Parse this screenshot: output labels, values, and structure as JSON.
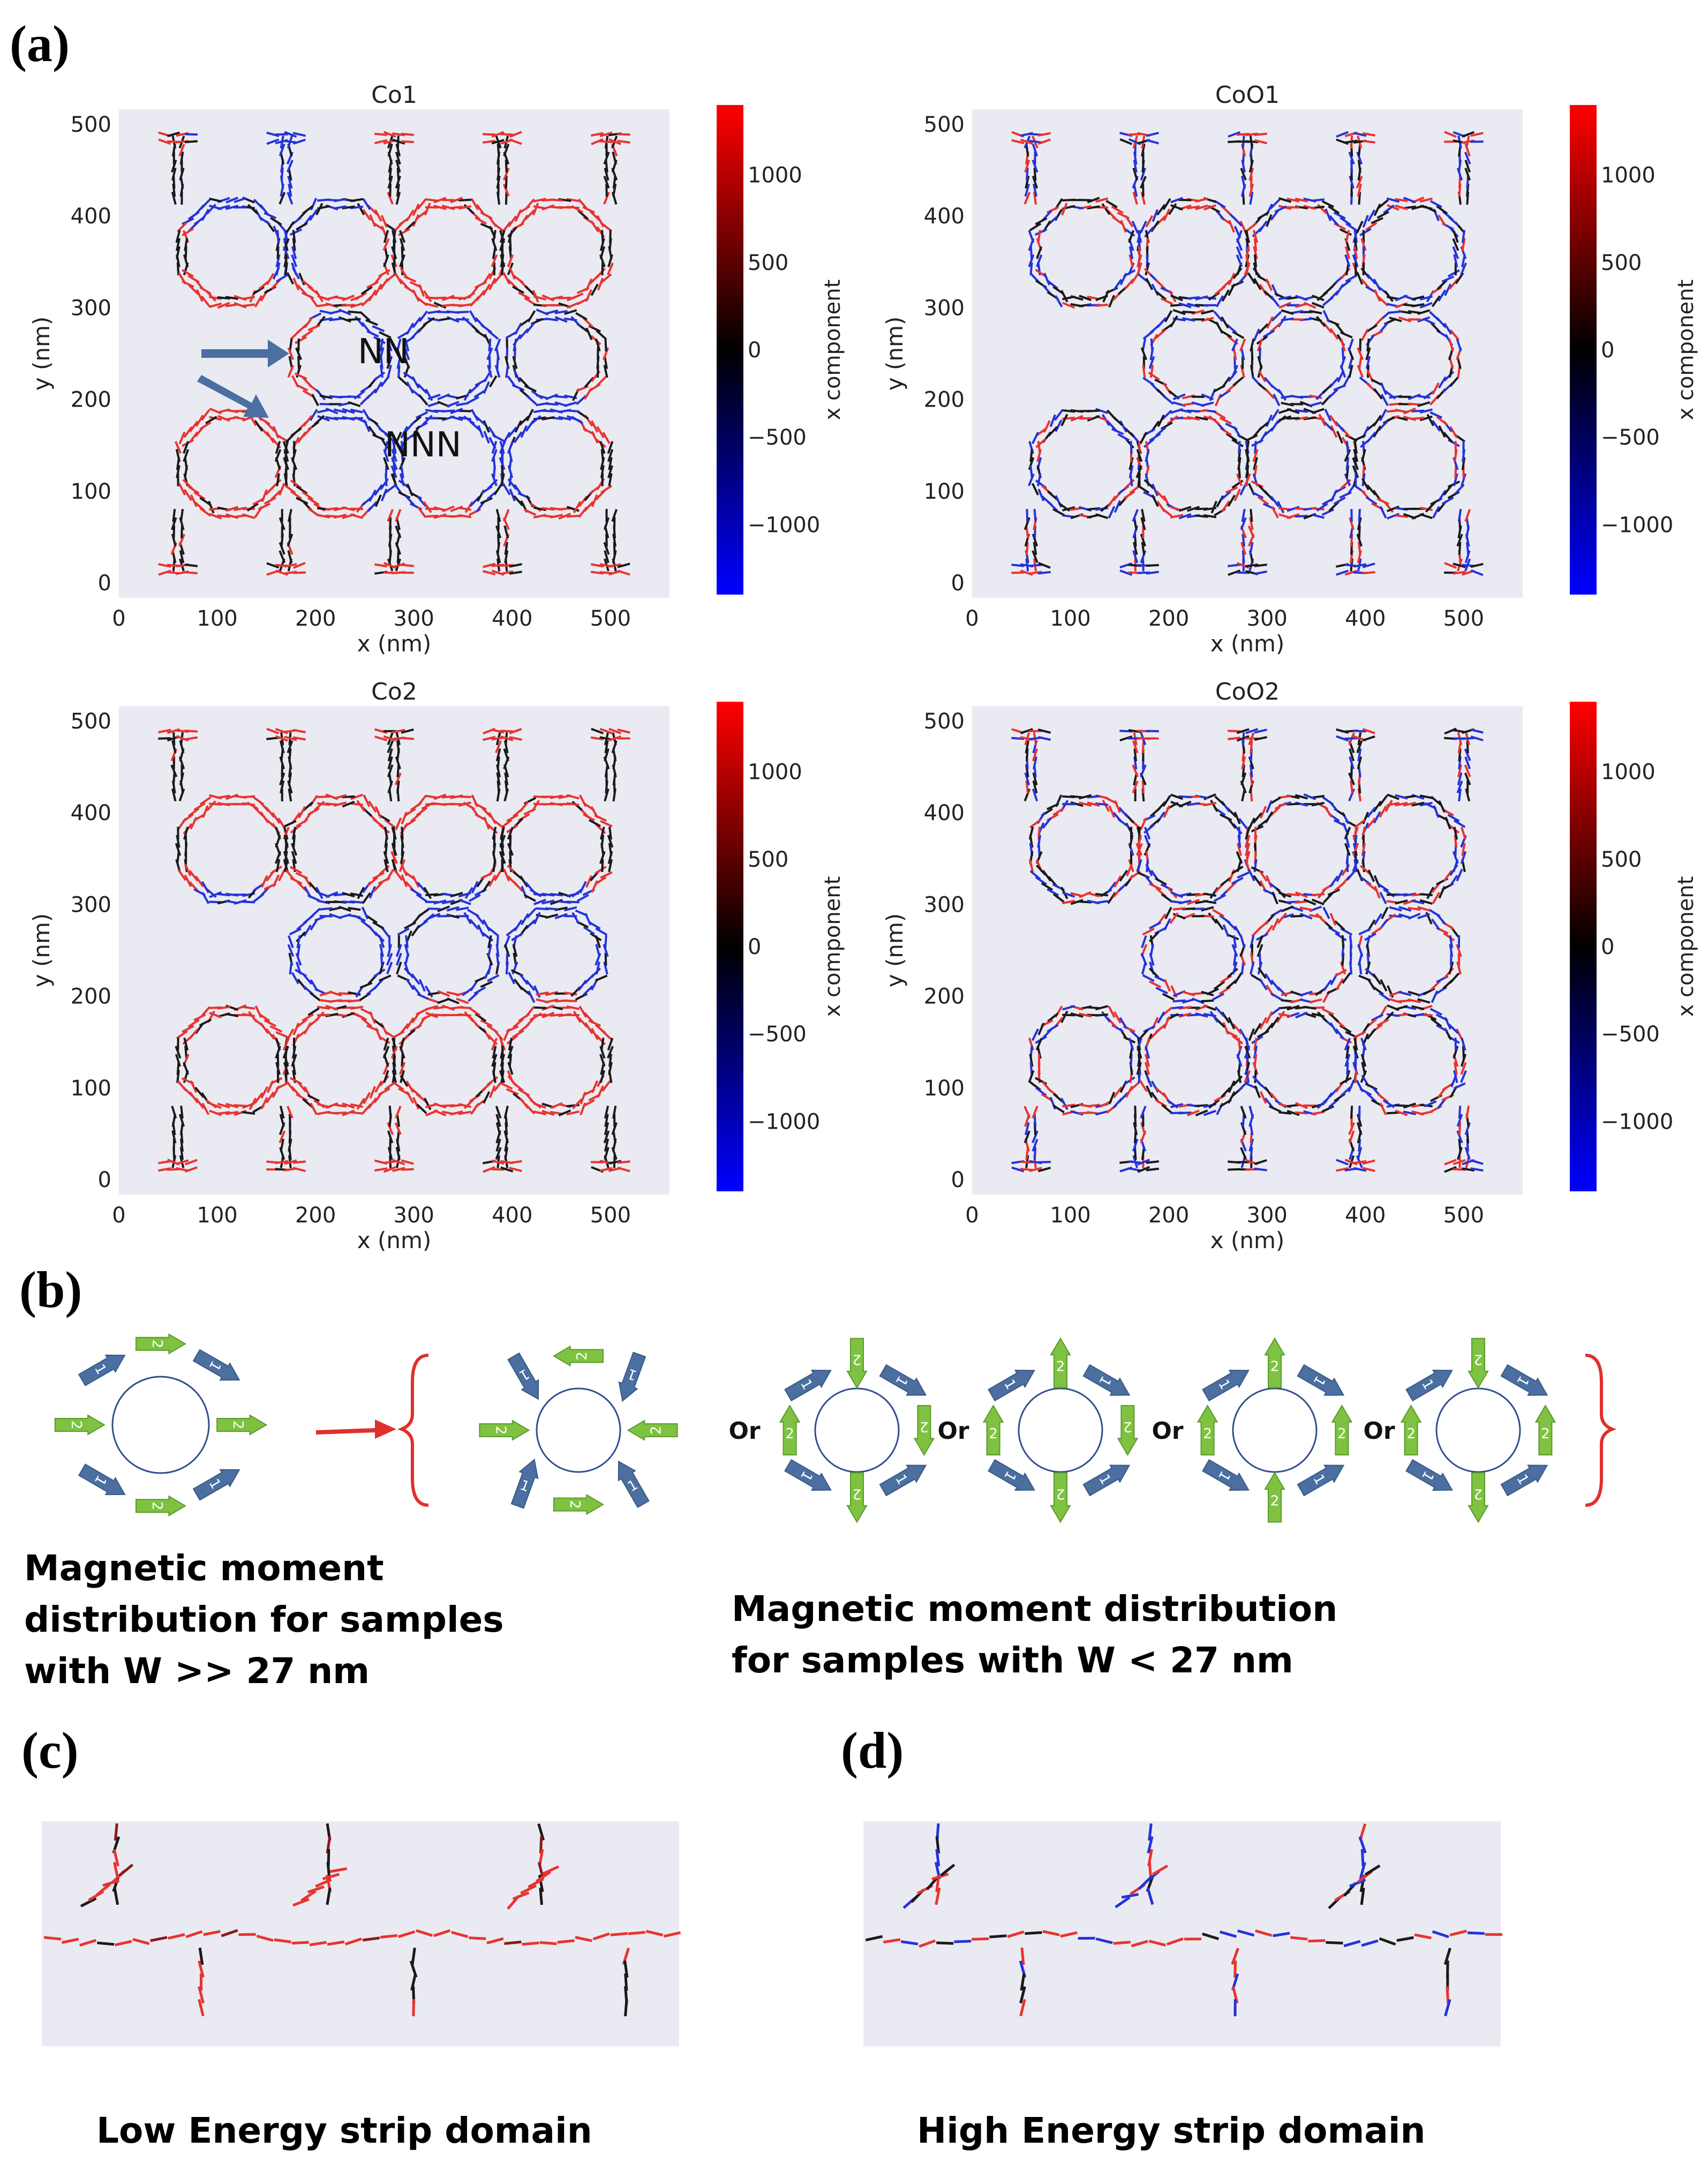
{
  "panel_labels": {
    "a": "(a)",
    "b": "(b)",
    "c": "(c)",
    "d": "(d)"
  },
  "plots": [
    {
      "title": "Co1",
      "annotations": [
        "NN",
        "NNN"
      ]
    },
    {
      "title": "CoO1",
      "annotations": []
    },
    {
      "title": "Co2",
      "annotations": []
    },
    {
      "title": "CoO2",
      "annotations": []
    }
  ],
  "axes": {
    "xlabel": "x (nm)",
    "ylabel": "y (nm)",
    "xticks": [
      "0",
      "100",
      "200",
      "300",
      "400",
      "500"
    ],
    "yticks": [
      "0",
      "100",
      "200",
      "300",
      "400",
      "500"
    ],
    "xlim": [
      0,
      560
    ],
    "ylim": [
      0,
      500
    ]
  },
  "colorbar": {
    "label": "x component",
    "ticks": [
      "1000",
      "500",
      "0",
      "−500",
      "−1000"
    ],
    "range": [
      -1400,
      1400
    ],
    "colors": {
      "high": "#ff0000",
      "mid": "#000000",
      "low": "#0000ff"
    }
  },
  "colors": {
    "plot_bg": "#eaeaf2",
    "spin_red": "#e8332f",
    "spin_blue": "#2433d8",
    "spin_black": "#1a1a1a",
    "arrow1": "#4a6fa0",
    "arrow2": "#7fc241",
    "bracket": "#e0302a"
  },
  "panel_b": {
    "arrow_labels": [
      "1",
      "2"
    ],
    "or_label": "Or",
    "caption_left": [
      "Magnetic moment",
      "distribution for samples",
      "with W >> 27 nm"
    ],
    "caption_right": [
      "Magnetic moment distribution",
      "for samples with W < 27 nm"
    ]
  },
  "panel_c": {
    "caption": "Low Energy strip domain"
  },
  "panel_d": {
    "caption": "High Energy strip domain"
  }
}
